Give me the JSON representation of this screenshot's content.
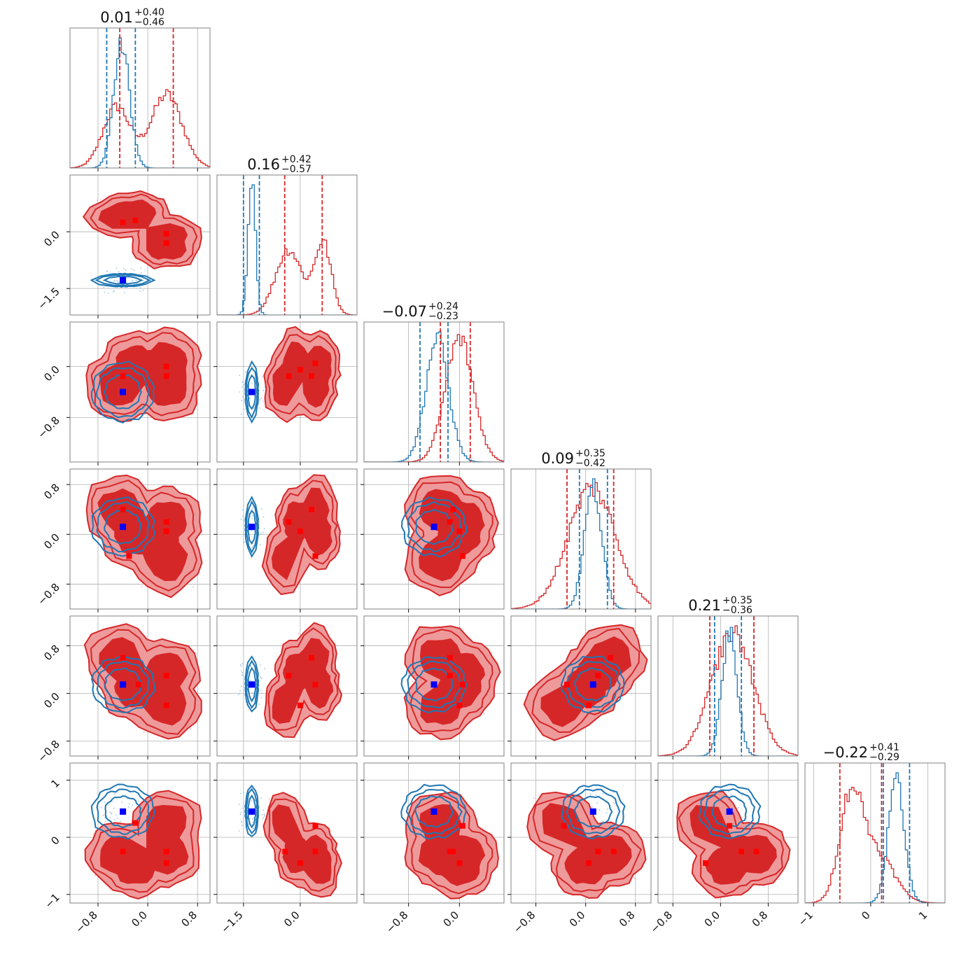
{
  "chart_data": {
    "type": "corner",
    "n_params": 6,
    "colors": {
      "red": "#d62728",
      "red_light": "#ee9a9b",
      "blue": "#1f77b4",
      "marker_blue": "#0000ff",
      "marker_red": "#ff0000",
      "grid": "#b0b0b0",
      "frame": "#808080"
    },
    "ranges": [
      [
        -1.25,
        1.0
      ],
      [
        -2.2,
        1.5
      ],
      [
        -1.5,
        0.7
      ],
      [
        -1.2,
        1.05
      ],
      [
        -1.05,
        1.3
      ],
      [
        -1.15,
        1.3
      ]
    ],
    "titles": [
      {
        "median": "0.01",
        "plus": "+0.40",
        "minus": "−0.46"
      },
      {
        "median": "0.16",
        "plus": "+0.42",
        "minus": "−0.57"
      },
      {
        "median": "−0.07",
        "plus": "+0.24",
        "minus": "−0.23"
      },
      {
        "median": "0.09",
        "plus": "+0.35",
        "minus": "−0.42"
      },
      {
        "median": "0.21",
        "plus": "+0.35",
        "minus": "−0.36"
      },
      {
        "median": "−0.22",
        "plus": "+0.41",
        "minus": "−0.29"
      }
    ],
    "ticks": [
      {
        "values": [
          -0.8,
          0.0,
          0.8
        ],
        "labels": [
          "−0.8",
          "0.0",
          "0.8"
        ]
      },
      {
        "values": [
          -1.5,
          0.0
        ],
        "labels": [
          "−1.5",
          "0.0"
        ]
      },
      {
        "values": [
          -0.8,
          0.0
        ],
        "labels": [
          "−0.8",
          "0.0"
        ]
      },
      {
        "values": [
          -0.8,
          0.0,
          0.8
        ],
        "labels": [
          "−0.8",
          "0.0",
          "0.8"
        ]
      },
      {
        "values": [
          -0.8,
          0.0,
          0.8
        ],
        "labels": [
          "−0.8",
          "0.0",
          "0.8"
        ]
      },
      {
        "values": [
          -1,
          0,
          1
        ],
        "labels": [
          "−1",
          "0",
          "1"
        ]
      }
    ],
    "quantiles": {
      "red": [
        [
          -0.45,
          0.41
        ],
        [
          -0.41,
          0.58
        ],
        [
          -0.3,
          0.17
        ],
        [
          -0.3,
          0.45
        ],
        [
          -0.18,
          0.56
        ],
        [
          -0.54,
          0.19
        ]
      ],
      "blue": [
        [
          -0.66,
          -0.2
        ],
        [
          -1.5,
          -1.08
        ],
        [
          -0.62,
          -0.18
        ],
        [
          -0.1,
          0.35
        ],
        [
          -0.1,
          0.35
        ],
        [
          0.22,
          0.68
        ]
      ]
    },
    "hist_red": [
      [
        {
          "m": -0.5,
          "s": 0.22,
          "w": 0.5
        },
        {
          "m": 0.3,
          "s": 0.25,
          "w": 0.6
        }
      ],
      [
        {
          "m": -0.3,
          "s": 0.35,
          "w": 0.5
        },
        {
          "m": 0.6,
          "s": 0.22,
          "w": 0.55
        }
      ],
      [
        {
          "m": 0.0,
          "s": 0.22,
          "w": 1.0
        }
      ],
      [
        {
          "m": 0.1,
          "s": 0.38,
          "w": 1.0
        }
      ],
      [
        {
          "m": 0.2,
          "s": 0.35,
          "w": 1.0
        }
      ],
      [
        {
          "m": -0.35,
          "s": 0.2,
          "w": 0.8
        },
        {
          "m": 0.1,
          "s": 0.3,
          "w": 0.4
        }
      ]
    ],
    "hist_blue": [
      [
        {
          "m": -0.42,
          "s": 0.13,
          "w": 1.0
        }
      ],
      [
        {
          "m": -1.28,
          "s": 0.1,
          "w": 1.0
        }
      ],
      [
        {
          "m": -0.35,
          "s": 0.18,
          "w": 1.0
        }
      ],
      [
        {
          "m": 0.12,
          "s": 0.14,
          "w": 1.0
        }
      ],
      [
        {
          "m": 0.15,
          "s": 0.13,
          "w": 1.0
        }
      ],
      [
        {
          "m": 0.45,
          "s": 0.14,
          "w": 1.0
        }
      ]
    ],
    "red_modes": [
      [
        -0.45,
        0.4,
        -0.3,
        0.4,
        0.6,
        -0.3
      ],
      [
        -0.2,
        0.5,
        0.0,
        0.0,
        0.1,
        -0.5
      ],
      [
        0.3,
        -0.1,
        0.05,
        0.2,
        0.35,
        -0.3
      ],
      [
        0.3,
        -0.4,
        -0.3,
        -0.4,
        -0.2,
        0.25
      ]
    ],
    "blue_mode": [
      -0.4,
      -1.28,
      -0.4,
      0.12,
      0.15,
      0.45
    ],
    "red_markers": [
      [
        1,
        0,
        -0.4,
        0.25
      ],
      [
        1,
        0,
        -0.2,
        0.3
      ],
      [
        1,
        0,
        0.3,
        -0.05
      ],
      [
        1,
        0,
        0.3,
        -0.3
      ],
      [
        2,
        0,
        -0.4,
        -0.15
      ],
      [
        2,
        0,
        0.3,
        -0.15
      ],
      [
        2,
        0,
        0.3,
        0.0
      ],
      [
        2,
        1,
        -0.3,
        -0.15
      ],
      [
        2,
        1,
        0.0,
        -0.05
      ],
      [
        2,
        1,
        0.3,
        -0.15
      ],
      [
        2,
        1,
        0.4,
        0.05
      ],
      [
        3,
        0,
        -0.4,
        0.4
      ],
      [
        3,
        0,
        0.3,
        0.2
      ],
      [
        3,
        0,
        0.3,
        0.05
      ],
      [
        3,
        0,
        -0.3,
        -0.35
      ],
      [
        3,
        1,
        -0.3,
        0.2
      ],
      [
        3,
        1,
        0.0,
        0.05
      ],
      [
        3,
        1,
        0.3,
        0.4
      ],
      [
        3,
        1,
        0.4,
        -0.35
      ],
      [
        3,
        2,
        -0.1,
        0.4
      ],
      [
        3,
        2,
        -0.15,
        0.2
      ],
      [
        3,
        2,
        0.05,
        -0.35
      ],
      [
        3,
        2,
        0.0,
        0.05
      ],
      [
        4,
        0,
        -0.4,
        0.6
      ],
      [
        4,
        0,
        0.3,
        0.3
      ],
      [
        4,
        0,
        0.3,
        -0.2
      ],
      [
        4,
        0,
        -0.15,
        0.15
      ],
      [
        4,
        1,
        -0.3,
        0.3
      ],
      [
        4,
        1,
        0.0,
        -0.2
      ],
      [
        4,
        1,
        0.3,
        0.6
      ],
      [
        4,
        1,
        0.4,
        0.15
      ],
      [
        4,
        2,
        -0.15,
        0.6
      ],
      [
        4,
        2,
        -0.15,
        0.3
      ],
      [
        4,
        2,
        0.05,
        0.15
      ],
      [
        4,
        2,
        0.0,
        -0.2
      ],
      [
        4,
        3,
        -0.3,
        0.15
      ],
      [
        4,
        3,
        0.2,
        0.3
      ],
      [
        4,
        3,
        0.4,
        0.6
      ],
      [
        4,
        3,
        0.05,
        -0.2
      ],
      [
        5,
        0,
        -0.4,
        -0.25
      ],
      [
        5,
        0,
        0.3,
        -0.25
      ],
      [
        5,
        0,
        0.3,
        -0.45
      ],
      [
        5,
        0,
        -0.2,
        0.25
      ],
      [
        5,
        1,
        -0.4,
        -0.25
      ],
      [
        5,
        1,
        0.0,
        -0.45
      ],
      [
        5,
        1,
        0.4,
        -0.25
      ],
      [
        5,
        1,
        0.4,
        0.2
      ],
      [
        5,
        2,
        -0.15,
        -0.25
      ],
      [
        5,
        2,
        0.05,
        0.2
      ],
      [
        5,
        2,
        0.0,
        -0.45
      ],
      [
        5,
        2,
        -0.1,
        -0.25
      ],
      [
        5,
        3,
        -0.35,
        0.2
      ],
      [
        5,
        3,
        0.2,
        -0.25
      ],
      [
        5,
        3,
        0.45,
        -0.25
      ],
      [
        5,
        3,
        0.05,
        -0.45
      ],
      [
        5,
        4,
        -0.25,
        -0.45
      ],
      [
        5,
        4,
        0.35,
        -0.25
      ],
      [
        5,
        4,
        0.6,
        -0.25
      ],
      [
        5,
        4,
        0.15,
        0.2
      ]
    ],
    "grid": true,
    "legend": "none"
  }
}
